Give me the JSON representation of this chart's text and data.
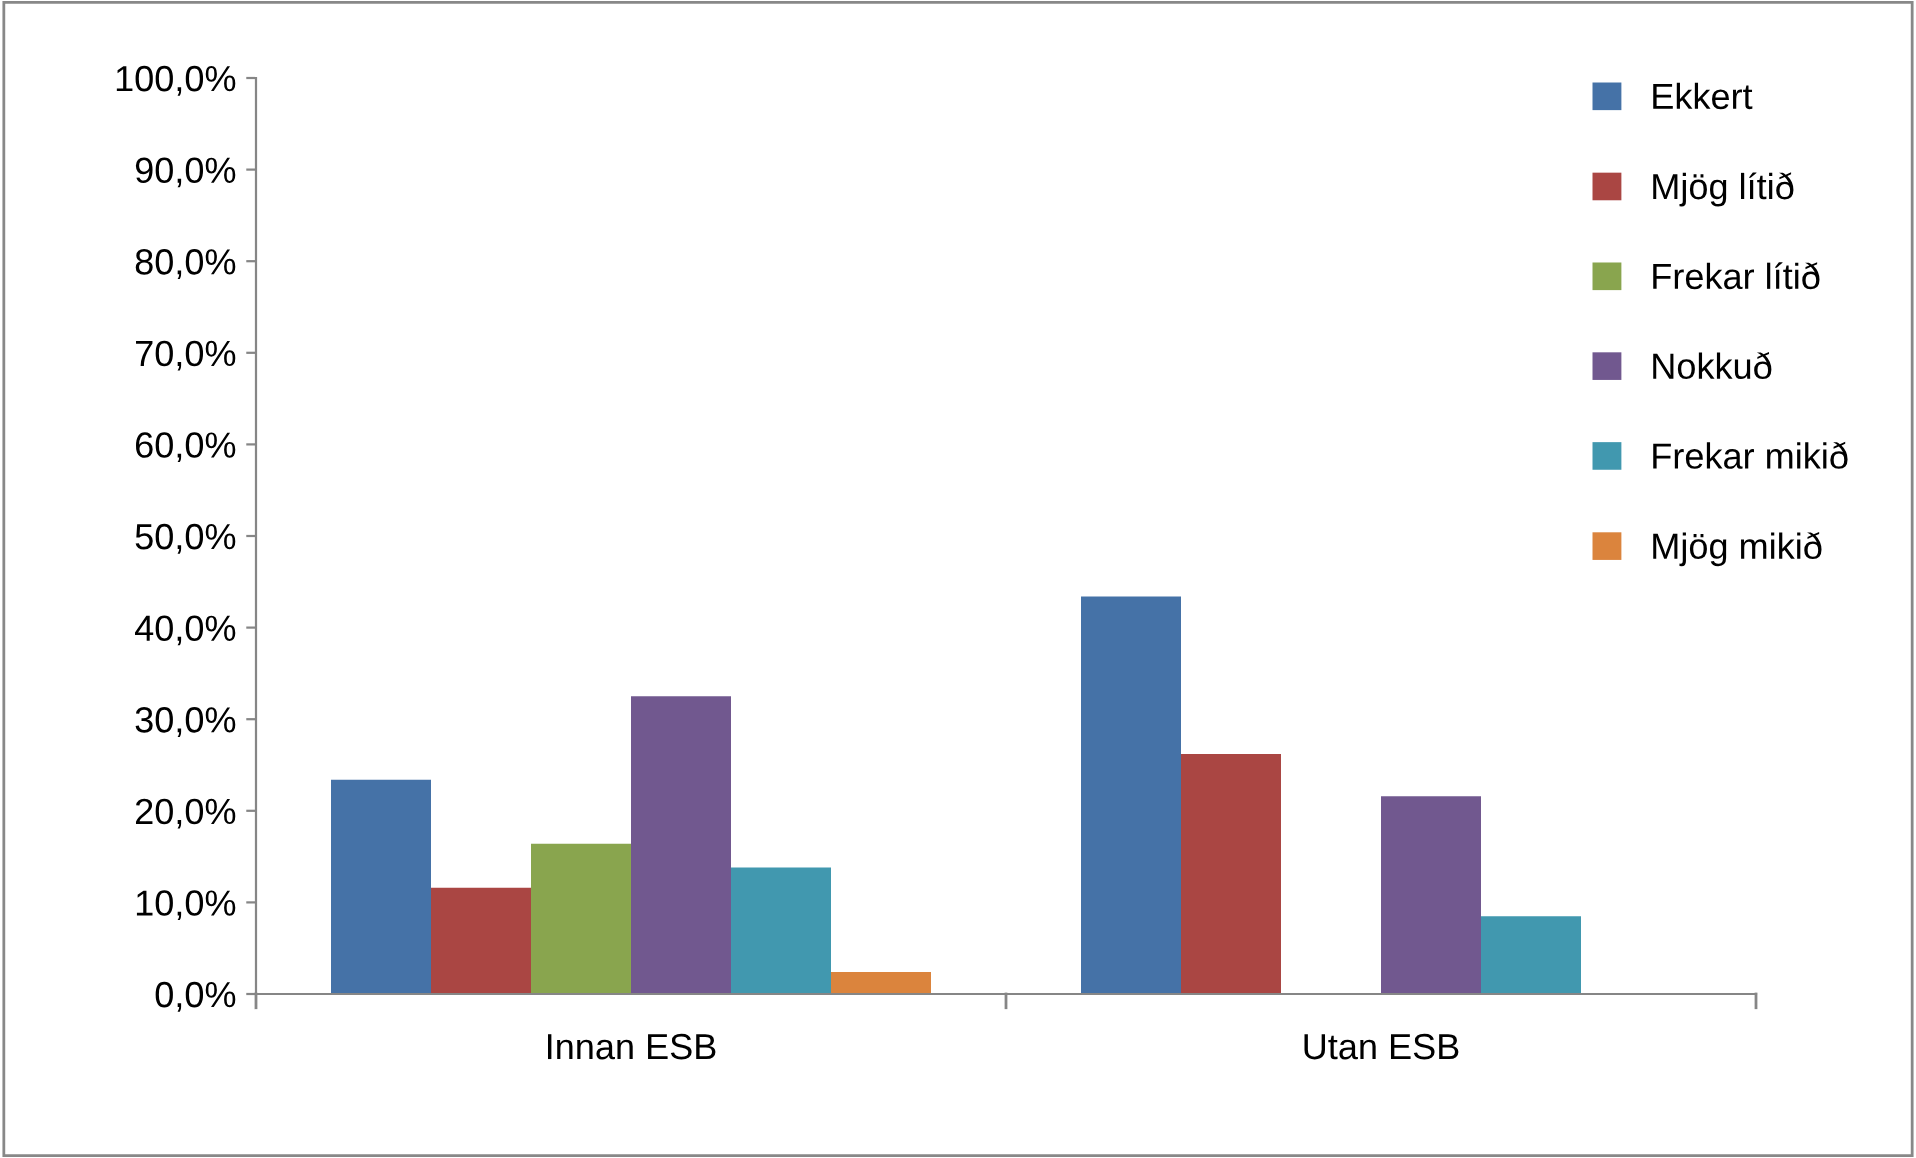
{
  "chart_data": {
    "type": "bar",
    "categories": [
      "Innan ESB",
      "Utan ESB"
    ],
    "series": [
      {
        "name": "Ekkert",
        "color": "#4572a7",
        "values": [
          23.4,
          43.4
        ]
      },
      {
        "name": "Mjög lítið",
        "color": "#aa4643",
        "values": [
          11.6,
          26.2
        ]
      },
      {
        "name": "Frekar lítið",
        "color": "#89a54e",
        "values": [
          16.4,
          0
        ]
      },
      {
        "name": "Nokkuð",
        "color": "#71588f",
        "values": [
          32.5,
          21.6
        ]
      },
      {
        "name": "Frekar mikið",
        "color": "#4198af",
        "values": [
          13.8,
          8.5
        ]
      },
      {
        "name": "Mjög mikið",
        "color": "#db843d",
        "values": [
          2.4,
          0
        ]
      }
    ],
    "ylim": [
      0,
      100
    ],
    "yticks": [
      {
        "value": 0,
        "label": "0,0%"
      },
      {
        "value": 10,
        "label": "10,0%"
      },
      {
        "value": 20,
        "label": "20,0%"
      },
      {
        "value": 30,
        "label": "30,0%"
      },
      {
        "value": 40,
        "label": "40,0%"
      },
      {
        "value": 50,
        "label": "50,0%"
      },
      {
        "value": 60,
        "label": "60,0%"
      },
      {
        "value": 70,
        "label": "70,0%"
      },
      {
        "value": 80,
        "label": "80,0%"
      },
      {
        "value": 90,
        "label": "90,0%"
      },
      {
        "value": 100,
        "label": "100,0%"
      }
    ],
    "grid": false,
    "legend": "right"
  }
}
